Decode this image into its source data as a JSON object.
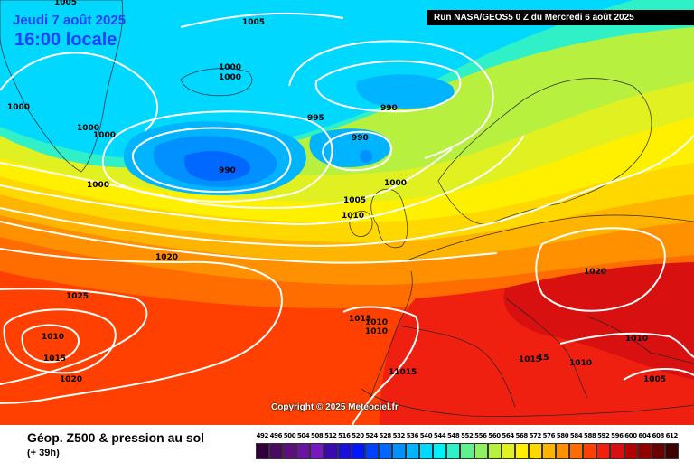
{
  "header": {
    "date": "Jeudi 7 août 2025",
    "time": "16:00 locale",
    "run": "Run NASA/GEOS5 0 Z du Mercredi 6 août 2025"
  },
  "copyright": "Copyright © 2025 Meteociel.fr",
  "footer": {
    "title": "Géop. Z500 & pression au sol",
    "subtitle": "(+ 39h)"
  },
  "legend": {
    "labels": [
      "492",
      "496",
      "500",
      "504",
      "508",
      "512",
      "516",
      "520",
      "524",
      "528",
      "532",
      "536",
      "540",
      "544",
      "548",
      "552",
      "556",
      "560",
      "564",
      "568",
      "572",
      "576",
      "580",
      "584",
      "588",
      "592",
      "596",
      "600",
      "604",
      "608",
      "612"
    ],
    "colors": [
      "#30003c",
      "#4a0a60",
      "#5c1080",
      "#6a14a0",
      "#7818c0",
      "#3a0ab0",
      "#1a10d8",
      "#0018ff",
      "#0040ff",
      "#0068ff",
      "#0090ff",
      "#00b4ff",
      "#00d8ff",
      "#00f0f8",
      "#30f0c8",
      "#60f090",
      "#90f060",
      "#b8f040",
      "#e0f020",
      "#fff000",
      "#ffd800",
      "#ffb400",
      "#ff9000",
      "#ff6c00",
      "#ff4000",
      "#f02010",
      "#d81010",
      "#b40000",
      "#900000",
      "#6a0000",
      "#3c0000"
    ]
  },
  "isobar_labels": [
    {
      "text": "1005",
      "name": "isobar-label-1005-top"
    },
    {
      "text": "1005",
      "name": "isobar-label-1005-top-left"
    },
    {
      "text": "1000",
      "name": "isobar-label-1000-iceland-north"
    },
    {
      "text": "1000",
      "name": "isobar-label-1000-iceland-north-2"
    },
    {
      "text": "1000",
      "name": "isobar-label-1000-greenland-west"
    },
    {
      "text": "1000",
      "name": "isobar-label-1000-greenland-south"
    },
    {
      "text": "1000",
      "name": "isobar-label-1000-greenland-south-2"
    },
    {
      "text": "995",
      "name": "isobar-label-995"
    },
    {
      "text": "990",
      "name": "isobar-label-990-main-low"
    },
    {
      "text": "990",
      "name": "isobar-label-990-norwegian-sea"
    },
    {
      "text": "990",
      "name": "isobar-label-990-faroes"
    },
    {
      "text": "1000",
      "name": "isobar-label-1000-atlantic"
    },
    {
      "text": "1000",
      "name": "isobar-label-1000-scotland"
    },
    {
      "text": "1005",
      "name": "isobar-label-1005-ireland"
    },
    {
      "text": "1010",
      "name": "isobar-label-1010-ireland"
    },
    {
      "text": "1020",
      "name": "isobar-label-1020-atlantic"
    },
    {
      "text": "1025",
      "name": "isobar-label-1025"
    },
    {
      "text": "1020",
      "name": "isobar-label-1020-east-europe"
    },
    {
      "text": "1015",
      "name": "isobar-label-1015-biscay"
    },
    {
      "text": "1010",
      "name": "isobar-label-1010-france-a"
    },
    {
      "text": "1010",
      "name": "isobar-label-1010-france-b"
    },
    {
      "text": "1010",
      "name": "isobar-label-1010-azores"
    },
    {
      "text": "1015",
      "name": "isobar-label-1015-azores"
    },
    {
      "text": "1020",
      "name": "isobar-label-1020-azores"
    },
    {
      "text": "11015",
      "name": "isobar-label-11015-spain"
    },
    {
      "text": "1015",
      "name": "isobar-label-1015-italy-a"
    },
    {
      "text": "15",
      "name": "isobar-label-15-italy-b"
    },
    {
      "text": "1010",
      "name": "isobar-label-1010-greece"
    },
    {
      "text": "1010",
      "name": "isobar-label-1010-balkans"
    },
    {
      "text": "1005",
      "name": "isobar-label-1005-turkey"
    }
  ]
}
